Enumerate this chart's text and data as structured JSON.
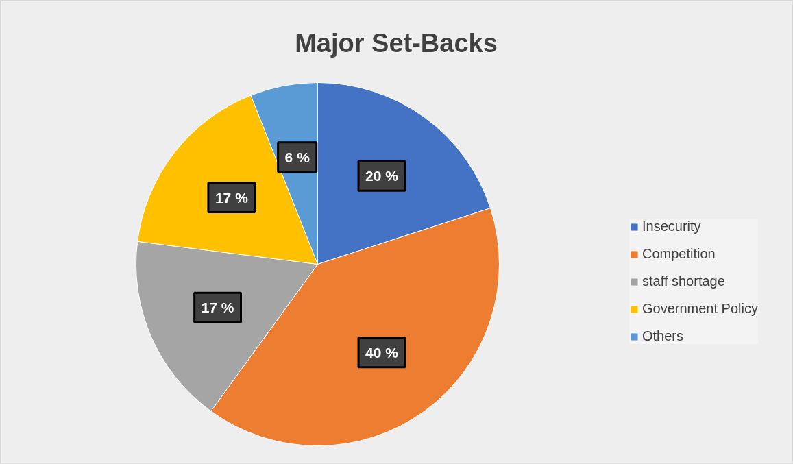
{
  "chart_data": {
    "type": "pie",
    "title": "Major Set-Backs",
    "categories": [
      "Insecurity",
      "Competition",
      "staff shortage",
      "Government Policy",
      "Others"
    ],
    "values": [
      20,
      40,
      17,
      17,
      6
    ],
    "colors": [
      "#4472c4",
      "#ed7d31",
      "#a5a5a5",
      "#ffc000",
      "#5b9bd5"
    ],
    "value_labels": [
      "20 %",
      "40 %",
      "17 %",
      "17 %",
      "6 %"
    ],
    "legend": "right"
  }
}
